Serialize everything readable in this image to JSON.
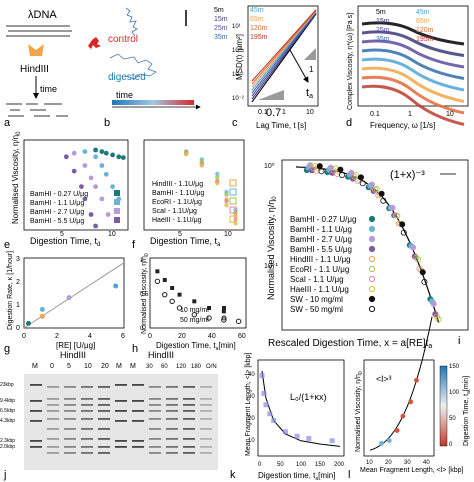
{
  "schematic": {
    "dna_label": "λDNA",
    "enzyme_label": "HindIII",
    "time_label": "time",
    "time_arrow_label": "time",
    "control_label": "control",
    "digested_label": "digested",
    "colors": {
      "control": "#d62728",
      "digested": "#1f77b4",
      "enzyme": "#f0a64a",
      "strand": "#9a9a9a"
    }
  },
  "panel_letters": [
    "a",
    "b",
    "c",
    "d",
    "e",
    "f",
    "g",
    "h",
    "i",
    "j",
    "k",
    "l"
  ],
  "msd_panel": {
    "ylabel": "MSD(t) [μm²]",
    "xlabel": "Lag Time, t [s]",
    "xticks": [
      "0.1",
      "1",
      "10"
    ],
    "yticks": [
      "10⁻²",
      "10⁻¹",
      "10⁰",
      "10¹"
    ],
    "slope_label": "0.7",
    "slope_one": "1",
    "arrow_label": "t",
    "arrow_sub": "a",
    "legend": [
      "5m",
      "15m",
      "25m",
      "35m",
      "45m",
      "65m",
      "120m",
      "195m"
    ]
  },
  "viscosity_spectrum_panel": {
    "ylabel": "Complex Viscosity, η*(ω) [Pa s]",
    "xlabel": "Frequency, ω [1/s]",
    "xticks": [
      "0.1",
      "1",
      "10"
    ],
    "legend": [
      "5m",
      "15m",
      "25m",
      "35m",
      "45m",
      "65m",
      "120m",
      "195m"
    ]
  },
  "chart_data": [
    {
      "panel": "e",
      "type": "scatter",
      "xlabel": "Digestion Time, t",
      "xlabel_sub": "d",
      "ylabel": "Normalised Viscosity, η/η",
      "ylabel_sub": "0",
      "log_y": true,
      "x_ticks": [
        "5",
        "10"
      ],
      "series": [
        {
          "name": "BamHI - 0.27 U/μg",
          "color": "#1a7a7a",
          "x": [
            20,
            30,
            40,
            60,
            90,
            120
          ],
          "y": [
            1.0,
            0.95,
            0.9,
            0.85,
            0.8,
            0.78
          ]
        },
        {
          "name": "BamHI - 1.1 U/μg",
          "color": "#6bb3d6",
          "x": [
            10,
            20,
            30,
            40,
            60,
            90
          ],
          "y": [
            0.95,
            0.8,
            0.6,
            0.45,
            0.3,
            0.2
          ]
        },
        {
          "name": "BamHI - 2.7 U/μg",
          "color": "#b79bd6",
          "x": [
            5,
            10,
            15,
            20,
            30,
            45
          ],
          "y": [
            0.9,
            0.6,
            0.4,
            0.3,
            0.2,
            0.12
          ]
        },
        {
          "name": "BamHI - 5.5 U/μg",
          "color": "#7b5ea7",
          "x": [
            3,
            5,
            8,
            10,
            15,
            20
          ],
          "y": [
            0.8,
            0.5,
            0.3,
            0.2,
            0.12,
            0.08
          ]
        }
      ]
    },
    {
      "panel": "f",
      "type": "scatter",
      "xlabel": "Digestion Time, t",
      "xlabel_sub": "a",
      "ylabel": "",
      "log_y": true,
      "x_ticks": [
        "5",
        "10"
      ],
      "series": [
        {
          "name": "HindIII - 1.1U/μg",
          "color": "#f0a64a",
          "x": [
            5,
            10,
            20,
            30,
            45
          ],
          "y": [
            0.9,
            0.6,
            0.3,
            0.15,
            0.08
          ]
        },
        {
          "name": "BamHI - 1.1U/μg",
          "color": "#6bb3d6",
          "x": [
            5,
            10,
            20,
            30,
            45
          ],
          "y": [
            0.95,
            0.7,
            0.4,
            0.2,
            0.1
          ]
        },
        {
          "name": "EcoRI - 1.1U/μg",
          "color": "#9ac94a",
          "x": [
            5,
            10,
            20,
            30,
            45
          ],
          "y": [
            0.92,
            0.65,
            0.35,
            0.18,
            0.09
          ]
        },
        {
          "name": "ScaI - 1.1U/μg",
          "color": "#e87da8",
          "x": [
            5,
            10,
            20,
            30,
            45
          ],
          "y": [
            0.88,
            0.58,
            0.3,
            0.14,
            0.07
          ]
        },
        {
          "name": "HaeIII - 1.1U/μg",
          "color": "#d9c23a",
          "x": [
            5,
            10,
            20,
            30,
            45
          ],
          "y": [
            0.85,
            0.55,
            0.28,
            0.12,
            0.06
          ]
        }
      ]
    },
    {
      "panel": "g",
      "type": "scatter",
      "xlabel": "[RE] [U/μg]",
      "ylabel": "Digestion Rate, κ [1/hour]",
      "x_ticks": [
        "0",
        "2",
        "4",
        "6"
      ],
      "y_ticks": [
        "0",
        "1",
        "2",
        "3"
      ],
      "x": [
        0.27,
        1.1,
        1.1,
        2.7,
        5.5
      ],
      "y": [
        0.2,
        0.5,
        0.8,
        1.3,
        1.8
      ],
      "fit": {
        "x": [
          0,
          6
        ],
        "y": [
          0,
          2.8
        ]
      }
    },
    {
      "panel": "h",
      "type": "scatter",
      "xlabel": "Digestion Time, t",
      "xlabel_sub": "a",
      "xlabel_unit": "[min]",
      "ylabel": "Normalised Viscosity, η/η",
      "ylabel_sub": "0",
      "x_ticks": [
        "0",
        "20",
        "40",
        "60"
      ],
      "y_ticks": [
        "0",
        "0.5",
        "1"
      ],
      "series": [
        {
          "name": "10 mg/ml",
          "color": "#222222",
          "filled": true,
          "x": [
            5,
            10,
            15,
            20,
            30,
            40,
            50
          ],
          "y": [
            0.85,
            0.72,
            0.6,
            0.5,
            0.4,
            0.3,
            0.25
          ]
        },
        {
          "name": "50 mg/ml",
          "color": "#222222",
          "filled": false,
          "x": [
            5,
            10,
            15,
            20,
            30,
            40,
            50,
            60
          ],
          "y": [
            0.7,
            0.5,
            0.4,
            0.3,
            0.2,
            0.15,
            0.12,
            0.1
          ]
        }
      ]
    },
    {
      "panel": "i",
      "type": "scatter",
      "xlabel": "Rescaled Digestion Time, x = a[RE]t",
      "xlabel_sub": "a",
      "ylabel": "Normalised Viscosity, η/η",
      "ylabel_sub": "0",
      "log_x": true,
      "log_y": true,
      "y_ticks": [
        "10⁻¹",
        "10⁰"
      ],
      "fit_label": "(1+x)⁻³",
      "fit": {
        "x": [
          0.01,
          0.1,
          0.5,
          1,
          2,
          5,
          10
        ],
        "y": [
          1.0,
          0.75,
          0.3,
          0.125,
          0.037,
          0.005,
          0.0008
        ]
      },
      "series": [
        {
          "name": "BamHI - 0.27 U/μg",
          "color": "#1a7a7a",
          "marker": "square"
        },
        {
          "name": "BamHI - 1.1 U/μg",
          "color": "#6bb3d6",
          "marker": "circle"
        },
        {
          "name": "BamHI - 2.7 U/μg",
          "color": "#b79bd6",
          "marker": "circle"
        },
        {
          "name": "BamHI - 5.5 U/μg",
          "color": "#7b5ea7",
          "marker": "triangle"
        },
        {
          "name": "HindIII - 1.1 U/μg",
          "color": "#f0a64a",
          "marker": "square-open"
        },
        {
          "name": "EcoRI - 1.1 U/μg",
          "color": "#9ac94a",
          "marker": "circle-open"
        },
        {
          "name": "ScaI - 1.1 U/μg",
          "color": "#e87da8",
          "marker": "triangle-open"
        },
        {
          "name": "HaeIII - 1.1 U/μg",
          "color": "#d9c23a",
          "marker": "diamond-open"
        },
        {
          "name": "SW - 10 mg/ml",
          "color": "#111111",
          "marker": "square"
        },
        {
          "name": "SW - 50 mg/ml",
          "color": "#111111",
          "marker": "circle-open"
        }
      ]
    },
    {
      "panel": "k",
      "type": "scatter",
      "xlabel": "Digestion time, t",
      "xlabel_sub": "a",
      "xlabel_unit": "[min]",
      "ylabel": "Mean Fragment Length, <l> [kbp]",
      "x_ticks": [
        "0",
        "50",
        "100",
        "150",
        "200"
      ],
      "y_ticks": [
        "10",
        "20",
        "30",
        "40"
      ],
      "fit_label": "L₀/(1+κx)",
      "x": [
        0,
        5,
        10,
        20,
        30,
        60,
        90,
        120,
        180
      ],
      "y": [
        38,
        30,
        25,
        21,
        18,
        13,
        11,
        10,
        9
      ],
      "fit": {
        "x": [
          0,
          10,
          30,
          60,
          100,
          150,
          200
        ],
        "y": [
          40,
          28,
          18,
          12,
          9,
          7.5,
          6.5
        ]
      }
    },
    {
      "panel": "l",
      "type": "scatter",
      "xlabel": "Mean Fragment Length, <l> [kbp]",
      "ylabel": "Normalised Viscosity, η/η",
      "ylabel_sub": "0",
      "x_ticks": [
        "10",
        "20",
        "30",
        "40"
      ],
      "fit_label": "<l>³",
      "colorbar": {
        "label": "Digestion Time, t",
        "label_sub": "a",
        "unit": "[min]",
        "ticks": [
          "0",
          "50",
          "100",
          "150"
        ],
        "low": "#c0392b",
        "high": "#1f77b4"
      },
      "x": [
        16,
        20,
        24,
        27,
        31,
        34
      ],
      "y": [
        0.06,
        0.08,
        0.15,
        0.25,
        0.35,
        0.5
      ],
      "t": [
        180,
        120,
        60,
        40,
        20,
        5
      ]
    }
  ],
  "gel": {
    "title_left": "HindIII",
    "title_right": "HindIII",
    "marker_label": "M",
    "lane_times_left": [
      "0",
      "5",
      "10",
      "20"
    ],
    "lane_times_right": [
      "30",
      "60",
      "120",
      "180",
      "O/N"
    ],
    "size_markers": [
      "23kbp",
      "9.4kbp",
      "6.5kbp",
      "4.3kbp",
      "2.3kbp",
      "2.0kbp"
    ]
  }
}
